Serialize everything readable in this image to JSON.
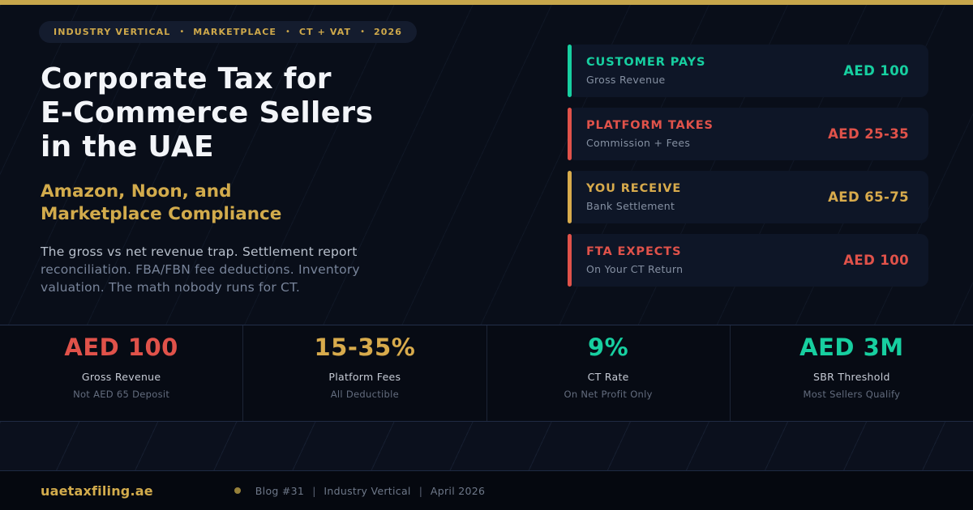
{
  "palette": {
    "accent_gold": "#d2ab4c",
    "accent_teal": "#17cfa0",
    "accent_red": "#e0524a",
    "top_bar": "#c7a64b",
    "background": "#090d18",
    "card_background": "#0e1627"
  },
  "breadcrumb": {
    "separator": "•",
    "items": [
      "INDUSTRY VERTICAL",
      "MARKETPLACE",
      "CT + VAT",
      "2026"
    ]
  },
  "hero": {
    "title_line1": "Corporate Tax for",
    "title_line2": "E-Commerce Sellers",
    "title_line3": "in the UAE",
    "subtitle_line1": "Amazon, Noon, and",
    "subtitle_line2": "Marketplace Compliance",
    "description_lead": "The gross vs net revenue trap. Settlement report",
    "description_rest": "reconciliation. FBA/FBN fee deductions. Inventory valuation. The math nobody runs for CT."
  },
  "flow_cards": [
    {
      "title": "CUSTOMER PAYS",
      "subtitle": "Gross Revenue",
      "value": "AED 100",
      "color": "#17cfa0"
    },
    {
      "title": "PLATFORM TAKES",
      "subtitle": "Commission + Fees",
      "value": "AED 25-35",
      "color": "#e0524a"
    },
    {
      "title": "YOU RECEIVE",
      "subtitle": "Bank Settlement",
      "value": "AED 65-75",
      "color": "#d8ab4c"
    },
    {
      "title": "FTA EXPECTS",
      "subtitle": "On Your CT Return",
      "value": "AED 100",
      "color": "#e0524a"
    }
  ],
  "stats": [
    {
      "value": "AED 100",
      "label": "Gross Revenue",
      "sublabel": "Not AED 65 Deposit",
      "color": "#e0524a"
    },
    {
      "value": "15-35%",
      "label": "Platform Fees",
      "sublabel": "All Deductible",
      "color": "#d8ab4c"
    },
    {
      "value": "9%",
      "label": "CT Rate",
      "sublabel": "On Net Profit Only",
      "color": "#17cfa0"
    },
    {
      "value": "AED 3M",
      "label": "SBR Threshold",
      "sublabel": "Most Sellers Qualify",
      "color": "#17cfa0"
    }
  ],
  "footer": {
    "brand": "uaetaxfiling.ae",
    "separator": "|",
    "items": [
      "Blog #31",
      "Industry Vertical",
      "April 2026"
    ]
  }
}
